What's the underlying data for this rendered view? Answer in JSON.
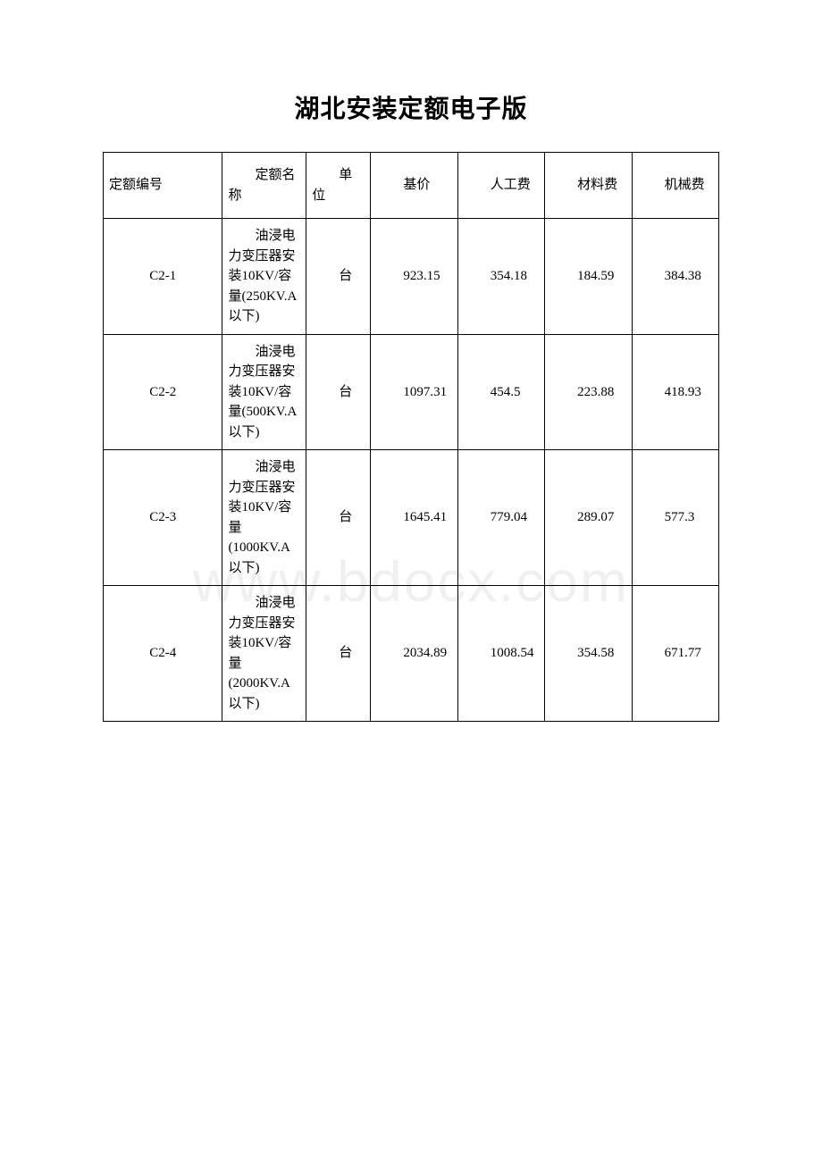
{
  "title": "湖北安装定额电子版",
  "watermark": "www.bdocx.com",
  "table": {
    "columns": [
      {
        "label": "定额编号",
        "class": "col-code"
      },
      {
        "label": "定额名称",
        "class": "col-name"
      },
      {
        "label": "单位",
        "class": "col-unit"
      },
      {
        "label": "基价",
        "class": "col-baseprice"
      },
      {
        "label": "人工费",
        "class": "col-labor"
      },
      {
        "label": "材料费",
        "class": "col-material"
      },
      {
        "label": "机械费",
        "class": "col-machine"
      }
    ],
    "rows": [
      {
        "code": "C2-1",
        "name": "油浸电力变压器安装10KV/容量(250KV.A以下)",
        "unit": "台",
        "baseprice": "923.15",
        "labor": "354.18",
        "material": "184.59",
        "machine": "384.38"
      },
      {
        "code": "C2-2",
        "name": "油浸电力变压器安装10KV/容量(500KV.A以下)",
        "unit": "台",
        "baseprice": "1097.31",
        "labor": "454.5",
        "material": "223.88",
        "machine": "418.93"
      },
      {
        "code": "C2-3",
        "name": "油浸电力变压器安装10KV/容量(1000KV.A以下)",
        "unit": "台",
        "baseprice": "1645.41",
        "labor": "779.04",
        "material": "289.07",
        "machine": "577.3"
      },
      {
        "code": "C2-4",
        "name": "油浸电力变压器安装10KV/容量(2000KV.A以下)",
        "unit": "台",
        "baseprice": "2034.89",
        "labor": "1008.54",
        "material": "354.58",
        "machine": "671.77"
      }
    ]
  }
}
